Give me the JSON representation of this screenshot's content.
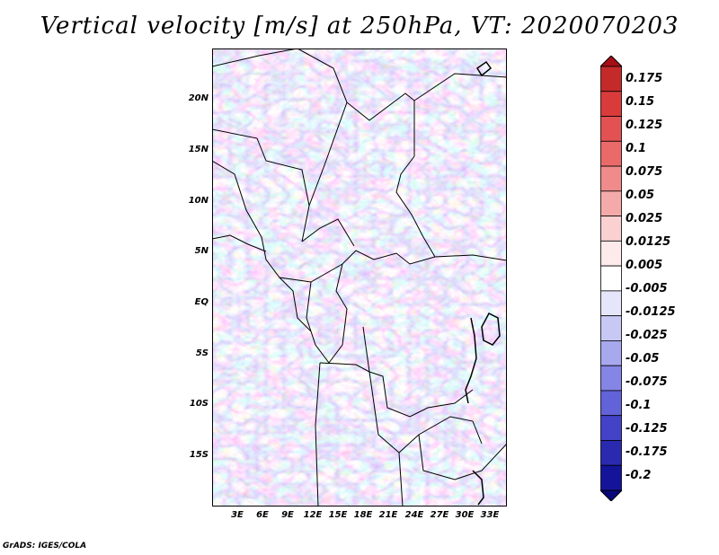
{
  "title": "Vertical velocity [m/s] at 250hPa, VT: 2020070203",
  "latitude_labels": [
    "20N",
    "15N",
    "10N",
    "5N",
    "EQ",
    "5S",
    "10S",
    "15S"
  ],
  "longitude_labels": [
    "3E",
    "6E",
    "9E",
    "12E",
    "15E",
    "18E",
    "21E",
    "24E",
    "27E",
    "30E",
    "33E"
  ],
  "colorbar": {
    "labels": [
      "0.175",
      "0.15",
      "0.125",
      "0.1",
      "0.075",
      "0.05",
      "0.025",
      "0.0125",
      "0.005",
      "-0.005",
      "-0.0125",
      "-0.025",
      "-0.05",
      "-0.075",
      "-0.1",
      "-0.125",
      "-0.175",
      "-0.2"
    ],
    "colors": [
      "#a50f15",
      "#c52a2a",
      "#d93b3b",
      "#e35252",
      "#ea6a6a",
      "#f08b8b",
      "#f5aaaa",
      "#fad0d0",
      "#fdeaea",
      "#ffffff",
      "#e6e6fb",
      "#c8c8f5",
      "#a8a8ef",
      "#8585e6",
      "#6262d9",
      "#4343c8",
      "#2a2ab0",
      "#14149a",
      "#08087a"
    ]
  },
  "credit": "GrADS: IGES/COLA"
}
